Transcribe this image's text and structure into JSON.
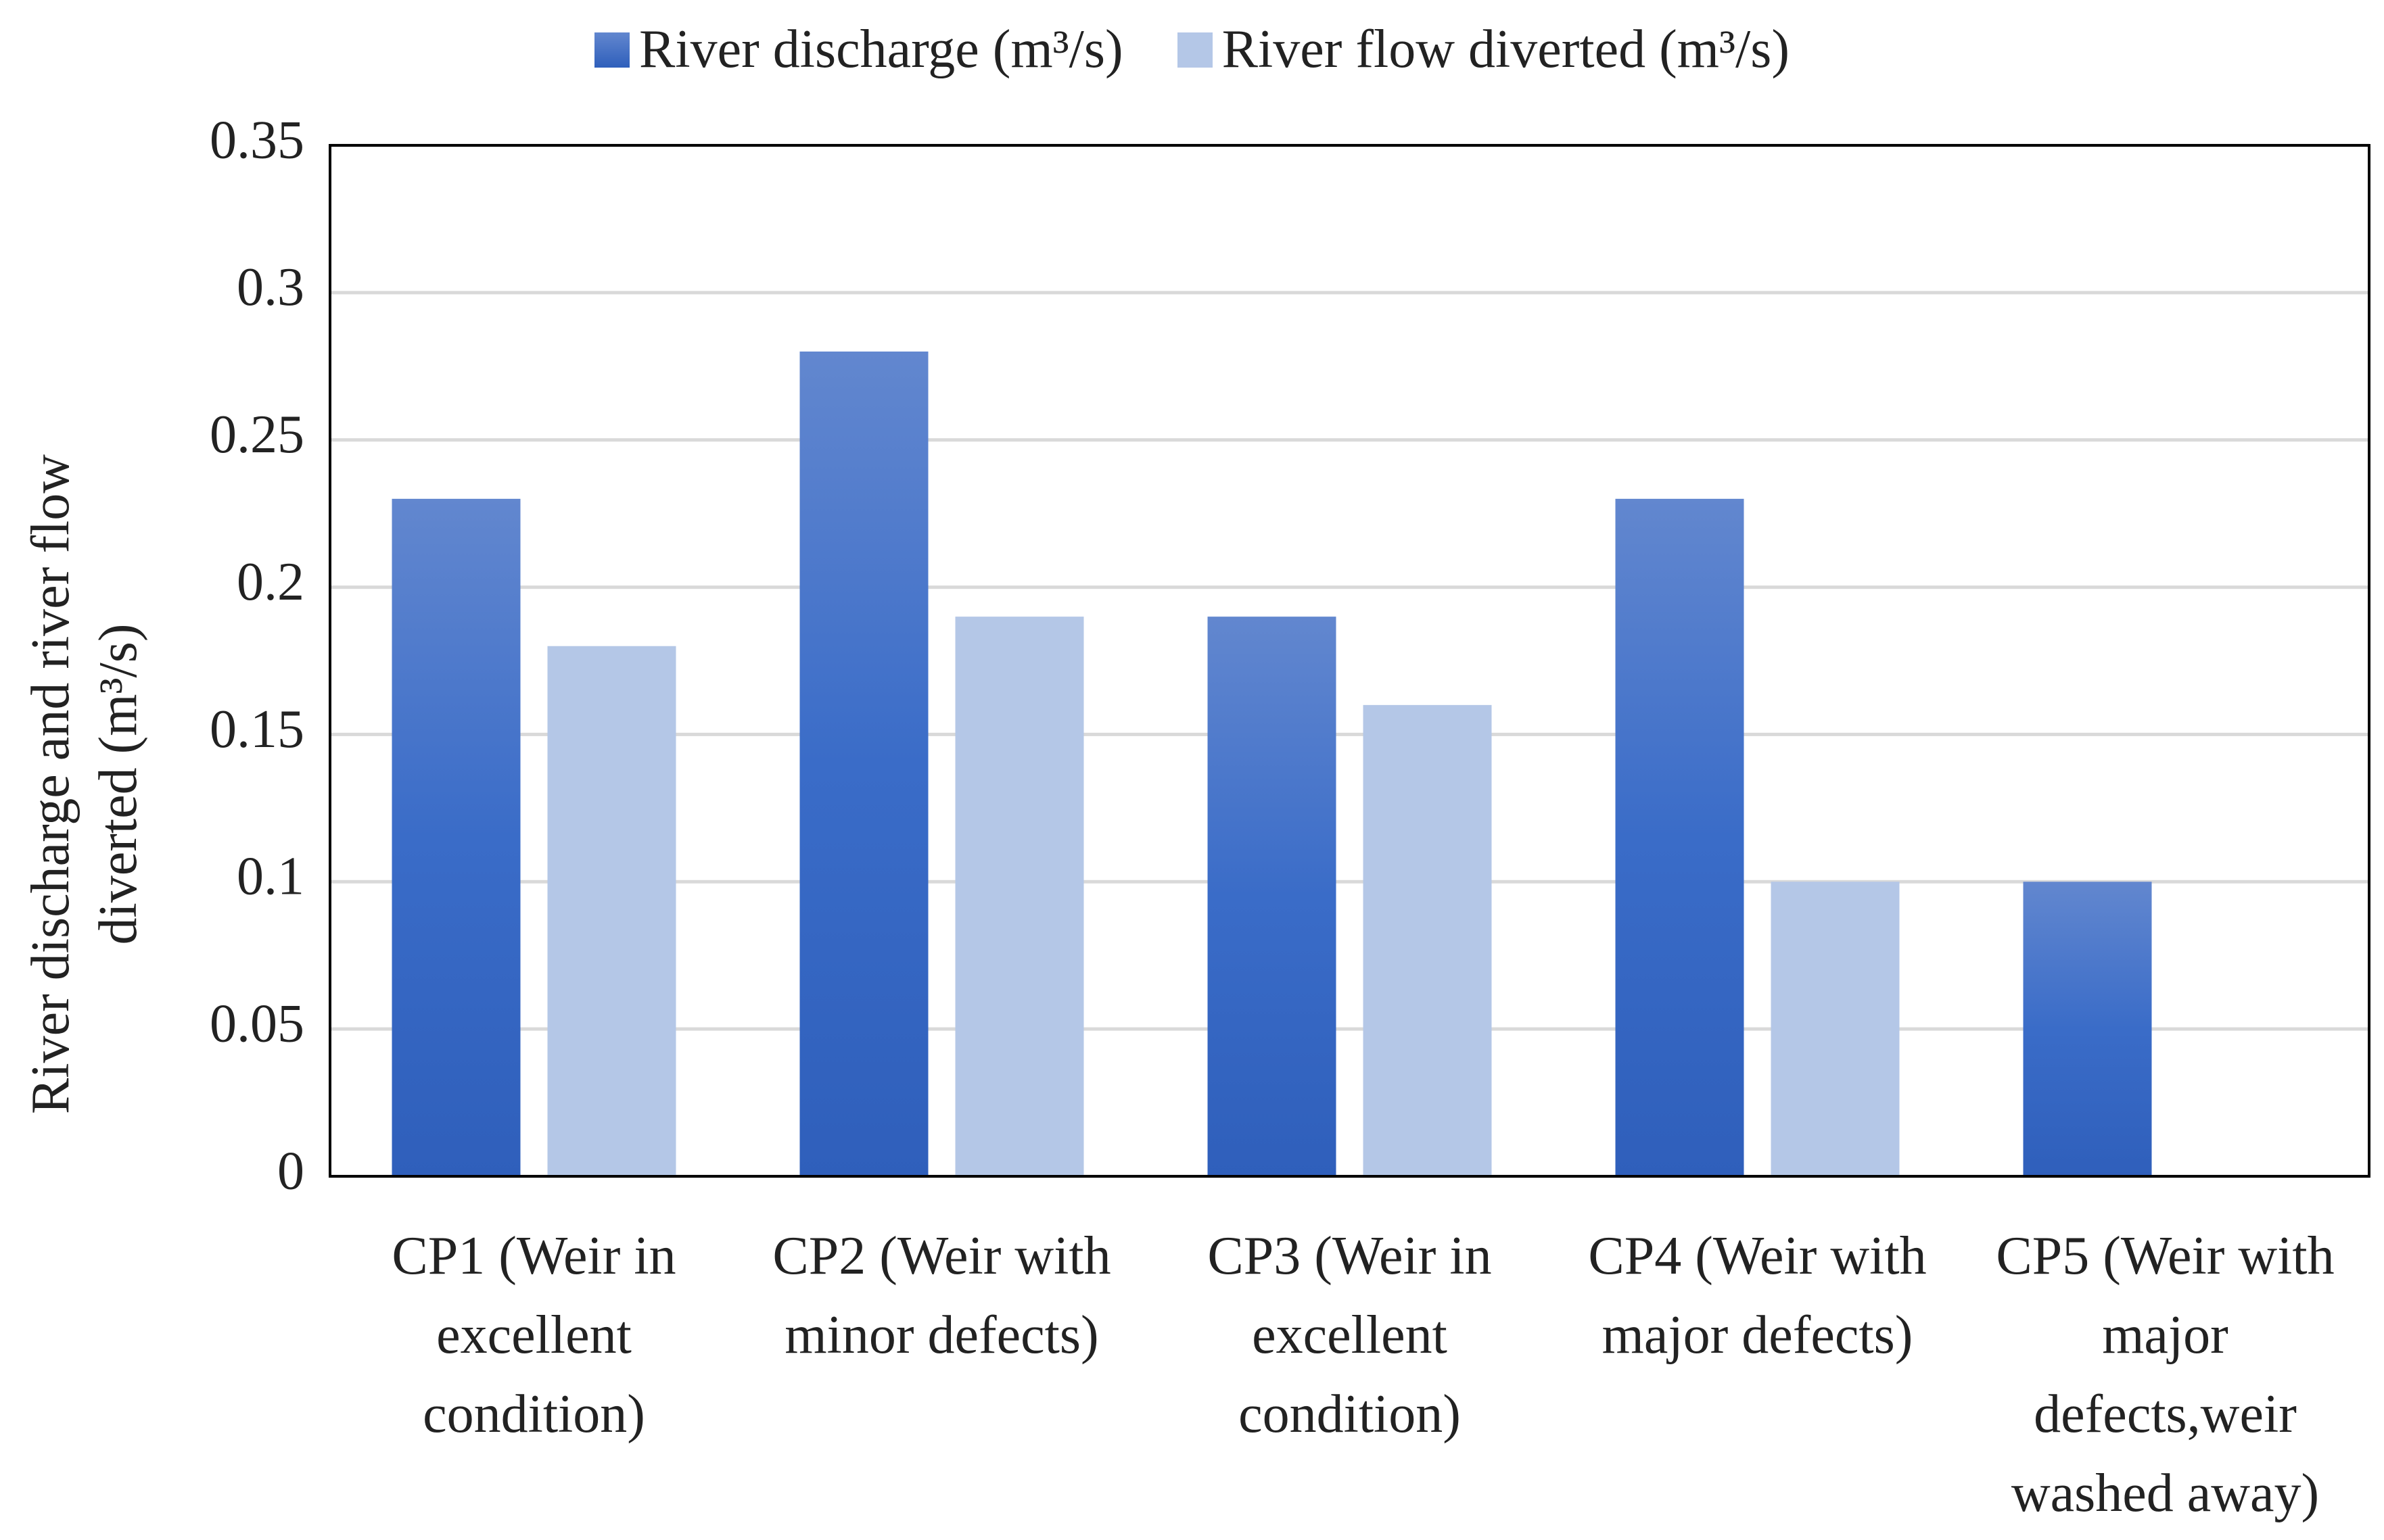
{
  "chart_data": {
    "type": "bar",
    "y_label": "River discharge and river flow diverted (m³/s)",
    "categories": [
      "CP1 (Weir in excellent condition)",
      "CP2 (Weir with minor defects)",
      "CP3 (Weir in excellent condition)",
      "CP4 (Weir with major defects)",
      "CP5 (Weir with major defects,weir washed away)"
    ],
    "series": [
      {
        "name": "River discharge (m³/s)",
        "color": "#4472c4",
        "values": [
          0.23,
          0.28,
          0.19,
          0.23,
          0.1
        ]
      },
      {
        "name": "River flow diverted (m³/s)",
        "color": "#b4c7e7",
        "values": [
          0.18,
          0.19,
          0.16,
          0.1,
          0
        ]
      }
    ],
    "ylim": [
      0,
      0.35
    ],
    "yticks": [
      0,
      0.05,
      0.1,
      0.15,
      0.2,
      0.25,
      0.3,
      0.35
    ],
    "grid": true,
    "legend": "top"
  }
}
